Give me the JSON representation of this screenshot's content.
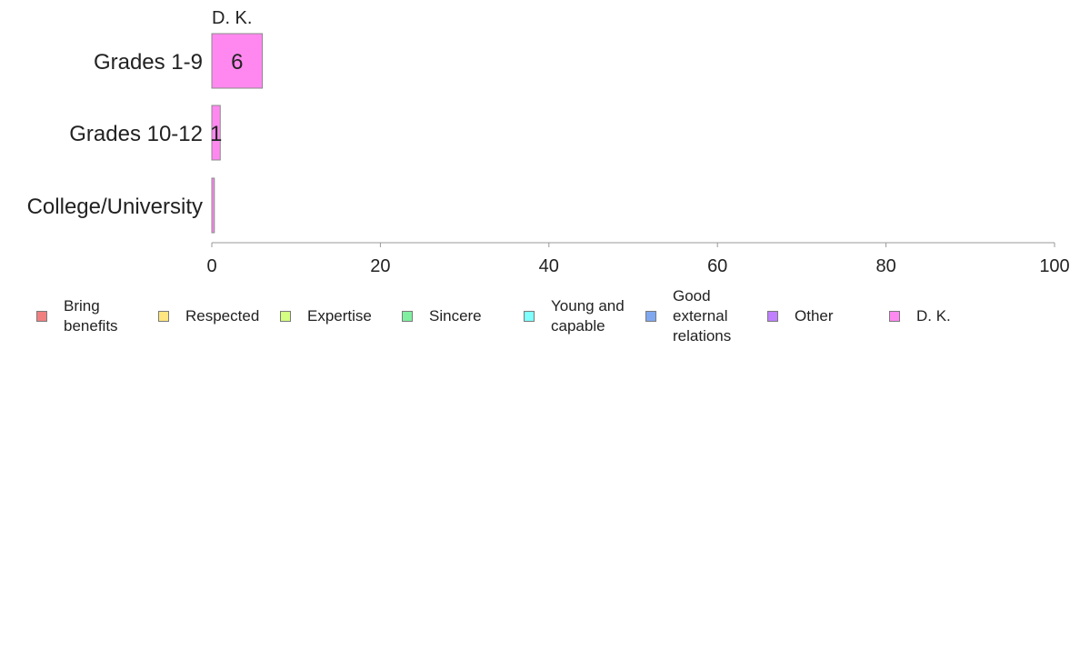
{
  "chart_data": {
    "type": "bar",
    "orientation": "horizontal",
    "stacked": true,
    "title": "",
    "xlabel": "",
    "ylabel": "",
    "xlim": [
      0,
      100
    ],
    "x_ticks": [
      "0",
      "20",
      "40",
      "60",
      "80",
      "100"
    ],
    "categories": [
      "Grades 1-9",
      "Grades 10-12",
      "College/University"
    ],
    "series": [
      {
        "name": "Bring benefits",
        "color": "#f08080",
        "values": [
          0,
          0,
          0
        ]
      },
      {
        "name": "Respected",
        "color": "#ffe680",
        "values": [
          0,
          0,
          0
        ]
      },
      {
        "name": "Expertise",
        "color": "#d4ff80",
        "values": [
          0,
          0,
          0
        ]
      },
      {
        "name": "Sincere",
        "color": "#80f0a0",
        "values": [
          0,
          0,
          0
        ]
      },
      {
        "name": "Young and capable",
        "color": "#80ffff",
        "values": [
          0,
          0,
          0
        ]
      },
      {
        "name": "Good external relations",
        "color": "#80a8f0",
        "values": [
          0,
          0,
          0
        ]
      },
      {
        "name": "Other",
        "color": "#c080ff",
        "values": [
          0,
          0,
          0
        ]
      },
      {
        "name": "D. K.",
        "color": "#ff88f0",
        "values": [
          6,
          1,
          0.3
        ]
      }
    ],
    "data_labels": [
      "6",
      "1",
      ""
    ],
    "top_annotation": "D. K.",
    "legend": {
      "placement": "bottom",
      "items": [
        {
          "label": "Bring\nbenefits",
          "color": "#f08080"
        },
        {
          "label": "Respected",
          "color": "#ffe680"
        },
        {
          "label": "Expertise",
          "color": "#d4ff80"
        },
        {
          "label": "Sincere",
          "color": "#80f0a0"
        },
        {
          "label": "Young and\ncapable",
          "color": "#80ffff"
        },
        {
          "label": "Good\nexternal\nrelations",
          "color": "#80a8f0"
        },
        {
          "label": "Other",
          "color": "#c080ff"
        },
        {
          "label": "D. K.",
          "color": "#ff88f0"
        }
      ]
    }
  }
}
